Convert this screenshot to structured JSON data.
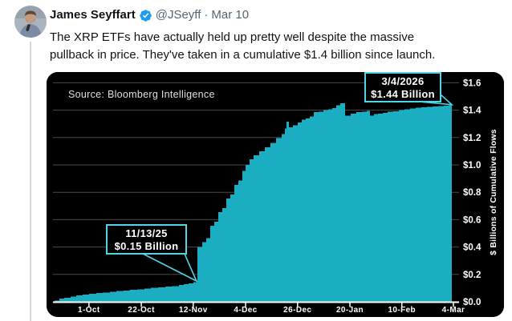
{
  "post": {
    "author": "James Seyffart",
    "handle": "@JSeyff",
    "separator": "·",
    "date": "Mar 10",
    "verified_badge_color": "#1d9bf0",
    "text_lines": [
      "The XRP ETFs have actually held up pretty well despite the massive",
      "pullback in price. They've taken in a cumulative $1.4 billion since launch."
    ]
  },
  "chart_data": {
    "type": "area",
    "series_name": "XRP ETF cumulative flows",
    "source_label": "Source: Bloomberg Intelligence",
    "ylabel": "$ Billions of Cumulative Flows",
    "ylim": [
      0,
      1.6
    ],
    "grid": "horizontal",
    "y_ticks": [
      {
        "label": "$0.0",
        "v": 0.0
      },
      {
        "label": "$0.2",
        "v": 0.2
      },
      {
        "label": "$0.4",
        "v": 0.4
      },
      {
        "label": "$0.6",
        "v": 0.6
      },
      {
        "label": "$0.8",
        "v": 0.8
      },
      {
        "label": "$1.0",
        "v": 1.0
      },
      {
        "label": "$1.2",
        "v": 1.2
      },
      {
        "label": "$1.4",
        "v": 1.4
      },
      {
        "label": "$1.6",
        "v": 1.6
      }
    ],
    "x_ticks": [
      {
        "label": "1-Oct",
        "rel": 0.086
      },
      {
        "label": "22-Oct",
        "rel": 0.217
      },
      {
        "label": "12-Nov",
        "rel": 0.347
      },
      {
        "label": "4-Dec",
        "rel": 0.478
      },
      {
        "label": "26-Dec",
        "rel": 0.608
      },
      {
        "label": "20-Jan",
        "rel": 0.739
      },
      {
        "label": "10-Feb",
        "rel": 0.869
      },
      {
        "label": "4-Mar",
        "rel": 0.998
      }
    ],
    "points": [
      [
        0.0,
        0.01
      ],
      [
        0.012,
        0.022
      ],
      [
        0.024,
        0.03
      ],
      [
        0.04,
        0.037
      ],
      [
        0.054,
        0.047
      ],
      [
        0.07,
        0.053
      ],
      [
        0.086,
        0.058
      ],
      [
        0.104,
        0.063
      ],
      [
        0.12,
        0.068
      ],
      [
        0.139,
        0.074
      ],
      [
        0.155,
        0.079
      ],
      [
        0.173,
        0.083
      ],
      [
        0.189,
        0.087
      ],
      [
        0.207,
        0.092
      ],
      [
        0.225,
        0.097
      ],
      [
        0.241,
        0.101
      ],
      [
        0.259,
        0.105
      ],
      [
        0.277,
        0.11
      ],
      [
        0.293,
        0.115
      ],
      [
        0.311,
        0.123
      ],
      [
        0.323,
        0.129
      ],
      [
        0.335,
        0.135
      ],
      [
        0.347,
        0.144
      ],
      [
        0.355,
        0.152
      ],
      [
        0.357,
        0.4
      ],
      [
        0.369,
        0.435
      ],
      [
        0.38,
        0.465
      ],
      [
        0.39,
        0.555
      ],
      [
        0.4,
        0.585
      ],
      [
        0.41,
        0.655
      ],
      [
        0.42,
        0.685
      ],
      [
        0.43,
        0.755
      ],
      [
        0.44,
        0.785
      ],
      [
        0.45,
        0.855
      ],
      [
        0.46,
        0.885
      ],
      [
        0.47,
        0.955
      ],
      [
        0.478,
        1.0
      ],
      [
        0.488,
        1.04
      ],
      [
        0.498,
        1.07
      ],
      [
        0.512,
        1.1
      ],
      [
        0.526,
        1.13
      ],
      [
        0.54,
        1.16
      ],
      [
        0.554,
        1.195
      ],
      [
        0.568,
        1.225
      ],
      [
        0.576,
        1.265
      ],
      [
        0.58,
        1.315
      ],
      [
        0.586,
        1.275
      ],
      [
        0.596,
        1.29
      ],
      [
        0.608,
        1.31
      ],
      [
        0.618,
        1.33
      ],
      [
        0.629,
        1.34
      ],
      [
        0.639,
        1.355
      ],
      [
        0.649,
        1.385
      ],
      [
        0.661,
        1.39
      ],
      [
        0.673,
        1.4
      ],
      [
        0.685,
        1.405
      ],
      [
        0.695,
        1.415
      ],
      [
        0.705,
        1.435
      ],
      [
        0.715,
        1.45
      ],
      [
        0.727,
        1.36
      ],
      [
        0.741,
        1.375
      ],
      [
        0.755,
        1.385
      ],
      [
        0.769,
        1.39
      ],
      [
        0.781,
        1.395
      ],
      [
        0.789,
        1.36
      ],
      [
        0.799,
        1.37
      ],
      [
        0.809,
        1.375
      ],
      [
        0.821,
        1.38
      ],
      [
        0.833,
        1.388
      ],
      [
        0.847,
        1.393
      ],
      [
        0.861,
        1.4
      ],
      [
        0.876,
        1.405
      ],
      [
        0.89,
        1.412
      ],
      [
        0.904,
        1.418
      ],
      [
        0.918,
        1.422
      ],
      [
        0.932,
        1.425
      ],
      [
        0.946,
        1.428
      ],
      [
        0.96,
        1.431
      ],
      [
        0.974,
        1.434
      ],
      [
        0.986,
        1.437
      ],
      [
        0.994,
        1.44
      ]
    ],
    "annotations": [
      {
        "lines": [
          "11/13/25",
          "$0.15 Billion"
        ],
        "anchor_rel": 0.355,
        "anchor_v": 0.152,
        "box": {
          "x": 75,
          "y": 191,
          "w": 99,
          "h": 36
        },
        "tail": [
          [
            120,
            227
          ],
          [
            172,
            227
          ]
        ]
      },
      {
        "lines": [
          "3/4/2026",
          "$1.44 Billion"
        ],
        "anchor_rel": 0.994,
        "anchor_v": 1.44,
        "box": {
          "x": 397,
          "y": 1,
          "w": 94,
          "h": 36
        },
        "tail": [
          [
            464,
            37
          ],
          [
            491,
            28
          ]
        ]
      }
    ],
    "colors": {
      "area": "#1badc2",
      "background": "#000000",
      "grid": "#4a4a4a",
      "axis": "#ffffff",
      "label": "#ffffff",
      "source_text": "#e0e0e0",
      "callout_bg": "#000000",
      "callout_border": "#4fd5e5",
      "callout_text": "#ffffff"
    }
  }
}
